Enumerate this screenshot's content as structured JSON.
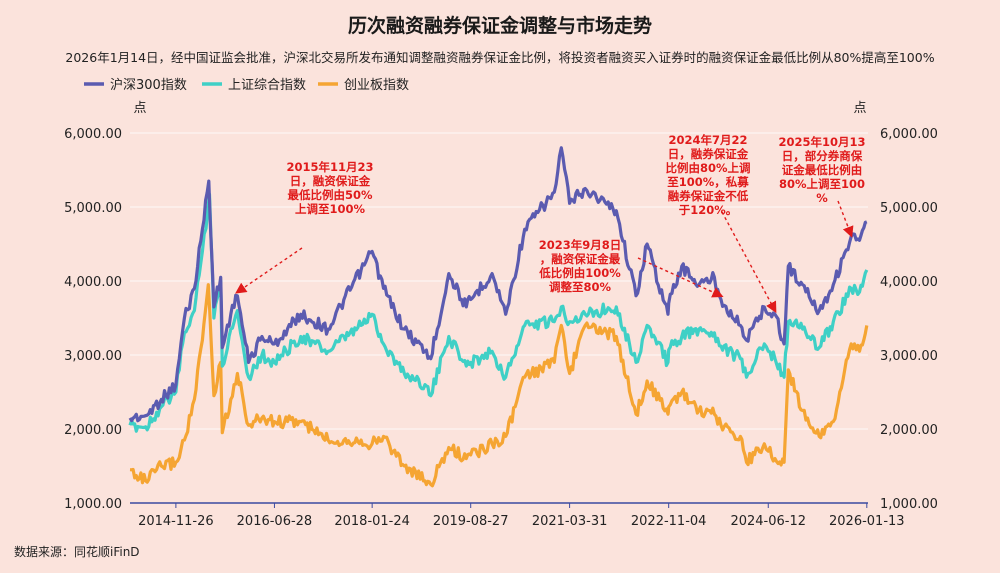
{
  "colors": {
    "background": "#fbe3dc",
    "hs300": "#5b5bb0",
    "sh": "#3fd0c6",
    "cyb": "#f5a533",
    "annotation": "#e01b1b",
    "axis": "#3b4aa0"
  },
  "chart_data": {
    "type": "line",
    "title": "历次融资融券保证金调整与市场走势",
    "subtitle": "2026年1月14日，经中国证监会批准，沪深北交易所发布通知调整融资融券保证金比例，将投资者融资买入证券时的融资保证金最低比例从80%提高至100%",
    "y_unit_left": "点",
    "y_unit_right": "点",
    "ylim": [
      1000,
      6000
    ],
    "xlim": [
      "2014-03-01",
      "2026-01-20"
    ],
    "y_ticks": [
      "1,000.00",
      "2,000.00",
      "3,000.00",
      "4,000.00",
      "5,000.00",
      "6,000.00"
    ],
    "y_tick_values": [
      1000,
      2000,
      3000,
      4000,
      5000,
      6000
    ],
    "x_ticks": [
      "2014-11-26",
      "2016-06-28",
      "2018-01-24",
      "2019-08-27",
      "2021-03-31",
      "2022-11-04",
      "2024-06-12",
      "2026-01-13"
    ],
    "legend": [
      "沪深300指数",
      "上证综合指数",
      "创业板指数"
    ],
    "source": "数据来源：同花顺iFinD",
    "series": [
      {
        "name": "沪深300指数",
        "points": [
          [
            "2014-03-01",
            2150
          ],
          [
            "2014-06-01",
            2180
          ],
          [
            "2014-09-01",
            2400
          ],
          [
            "2014-11-26",
            2600
          ],
          [
            "2015-01-15",
            3500
          ],
          [
            "2015-03-15",
            3900
          ],
          [
            "2015-05-01",
            4700
          ],
          [
            "2015-06-08",
            5350
          ],
          [
            "2015-07-08",
            3650
          ],
          [
            "2015-08-17",
            4050
          ],
          [
            "2015-08-26",
            3100
          ],
          [
            "2015-10-15",
            3550
          ],
          [
            "2015-11-23",
            3800
          ],
          [
            "2016-01-28",
            2900
          ],
          [
            "2016-04-15",
            3250
          ],
          [
            "2016-06-28",
            3150
          ],
          [
            "2016-11-30",
            3550
          ],
          [
            "2017-05-10",
            3350
          ],
          [
            "2017-11-20",
            4150
          ],
          [
            "2018-01-24",
            4400
          ],
          [
            "2018-04-01",
            3900
          ],
          [
            "2018-08-01",
            3350
          ],
          [
            "2018-12-01",
            3050
          ],
          [
            "2019-01-04",
            2950
          ],
          [
            "2019-04-20",
            4100
          ],
          [
            "2019-08-01",
            3650
          ],
          [
            "2019-08-27",
            3750
          ],
          [
            "2019-12-31",
            4100
          ],
          [
            "2020-03-20",
            3550
          ],
          [
            "2020-07-10",
            4700
          ],
          [
            "2020-12-31",
            5200
          ],
          [
            "2021-02-10",
            5800
          ],
          [
            "2021-03-31",
            5050
          ],
          [
            "2021-07-01",
            5250
          ],
          [
            "2021-12-31",
            4950
          ],
          [
            "2022-04-26",
            3800
          ],
          [
            "2022-06-30",
            4500
          ],
          [
            "2022-10-31",
            3550
          ],
          [
            "2022-11-04",
            3700
          ],
          [
            "2023-01-20",
            4200
          ],
          [
            "2023-05-01",
            3950
          ],
          [
            "2023-07-31",
            4050
          ],
          [
            "2023-09-08",
            3750
          ],
          [
            "2023-12-31",
            3400
          ],
          [
            "2024-02-05",
            3200
          ],
          [
            "2024-05-20",
            3650
          ],
          [
            "2024-06-12",
            3550
          ],
          [
            "2024-07-22",
            3550
          ],
          [
            "2024-09-13",
            3150
          ],
          [
            "2024-10-08",
            4200
          ],
          [
            "2024-12-31",
            3950
          ],
          [
            "2025-04-08",
            3600
          ],
          [
            "2025-06-30",
            3950
          ],
          [
            "2025-10-13",
            4600
          ],
          [
            "2025-12-01",
            4550
          ],
          [
            "2026-01-13",
            4800
          ]
        ]
      },
      {
        "name": "上证综合指数",
        "points": [
          [
            "2014-03-01",
            2050
          ],
          [
            "2014-06-01",
            2030
          ],
          [
            "2014-09-01",
            2300
          ],
          [
            "2014-11-26",
            2500
          ],
          [
            "2015-01-15",
            3300
          ],
          [
            "2015-03-15",
            3600
          ],
          [
            "2015-05-01",
            4400
          ],
          [
            "2015-06-12",
            5170
          ],
          [
            "2015-07-08",
            3500
          ],
          [
            "2015-08-17",
            4000
          ],
          [
            "2015-08-26",
            2850
          ],
          [
            "2015-10-15",
            3350
          ],
          [
            "2015-11-23",
            3600
          ],
          [
            "2016-01-28",
            2700
          ],
          [
            "2016-04-15",
            3000
          ],
          [
            "2016-06-28",
            2900
          ],
          [
            "2016-11-30",
            3250
          ],
          [
            "2017-05-10",
            3050
          ],
          [
            "2017-11-20",
            3400
          ],
          [
            "2018-01-24",
            3550
          ],
          [
            "2018-04-01",
            3150
          ],
          [
            "2018-08-01",
            2750
          ],
          [
            "2018-12-01",
            2600
          ],
          [
            "2019-01-04",
            2450
          ],
          [
            "2019-04-20",
            3250
          ],
          [
            "2019-08-01",
            2850
          ],
          [
            "2019-08-27",
            2900
          ],
          [
            "2019-12-31",
            3050
          ],
          [
            "2020-03-20",
            2700
          ],
          [
            "2020-07-10",
            3400
          ],
          [
            "2020-12-31",
            3450
          ],
          [
            "2021-02-10",
            3650
          ],
          [
            "2021-03-31",
            3450
          ],
          [
            "2021-07-01",
            3550
          ],
          [
            "2021-12-31",
            3650
          ],
          [
            "2022-04-26",
            2900
          ],
          [
            "2022-06-30",
            3400
          ],
          [
            "2022-10-31",
            2900
          ],
          [
            "2022-11-04",
            3070
          ],
          [
            "2023-01-20",
            3250
          ],
          [
            "2023-05-01",
            3350
          ],
          [
            "2023-07-31",
            3300
          ],
          [
            "2023-09-08",
            3120
          ],
          [
            "2023-12-31",
            2950
          ],
          [
            "2024-02-05",
            2700
          ],
          [
            "2024-05-20",
            3150
          ],
          [
            "2024-06-12",
            3050
          ],
          [
            "2024-07-22",
            2950
          ],
          [
            "2024-09-13",
            2700
          ],
          [
            "2024-10-08",
            3450
          ],
          [
            "2024-12-31",
            3350
          ],
          [
            "2025-04-08",
            3100
          ],
          [
            "2025-06-30",
            3450
          ],
          [
            "2025-10-13",
            3900
          ],
          [
            "2025-12-01",
            3850
          ],
          [
            "2026-01-13",
            4150
          ]
        ]
      },
      {
        "name": "创业板指数",
        "points": [
          [
            "2014-03-01",
            1450
          ],
          [
            "2014-06-01",
            1300
          ],
          [
            "2014-09-01",
            1500
          ],
          [
            "2014-11-26",
            1550
          ],
          [
            "2015-01-15",
            1850
          ],
          [
            "2015-03-15",
            2400
          ],
          [
            "2015-05-01",
            3200
          ],
          [
            "2015-06-05",
            3950
          ],
          [
            "2015-07-08",
            2450
          ],
          [
            "2015-08-17",
            2900
          ],
          [
            "2015-08-26",
            1950
          ],
          [
            "2015-10-15",
            2400
          ],
          [
            "2015-11-23",
            2750
          ],
          [
            "2016-01-28",
            2050
          ],
          [
            "2016-04-15",
            2150
          ],
          [
            "2016-06-28",
            2100
          ],
          [
            "2016-11-30",
            2100
          ],
          [
            "2017-05-10",
            1850
          ],
          [
            "2017-11-20",
            1850
          ],
          [
            "2018-01-24",
            1800
          ],
          [
            "2018-04-01",
            1900
          ],
          [
            "2018-08-01",
            1500
          ],
          [
            "2018-12-01",
            1300
          ],
          [
            "2019-01-04",
            1250
          ],
          [
            "2019-04-20",
            1750
          ],
          [
            "2019-08-01",
            1600
          ],
          [
            "2019-08-27",
            1650
          ],
          [
            "2019-12-31",
            1800
          ],
          [
            "2020-03-20",
            1900
          ],
          [
            "2020-07-10",
            2700
          ],
          [
            "2020-12-31",
            2900
          ],
          [
            "2021-02-10",
            3400
          ],
          [
            "2021-03-31",
            2750
          ],
          [
            "2021-07-01",
            3400
          ],
          [
            "2021-12-31",
            3250
          ],
          [
            "2022-04-26",
            2200
          ],
          [
            "2022-06-30",
            2650
          ],
          [
            "2022-10-31",
            2200
          ],
          [
            "2022-11-04",
            2300
          ],
          [
            "2023-01-20",
            2500
          ],
          [
            "2023-05-01",
            2250
          ],
          [
            "2023-07-31",
            2200
          ],
          [
            "2023-09-08",
            2050
          ],
          [
            "2023-12-31",
            1900
          ],
          [
            "2024-02-05",
            1550
          ],
          [
            "2024-05-20",
            1800
          ],
          [
            "2024-06-12",
            1700
          ],
          [
            "2024-07-22",
            1600
          ],
          [
            "2024-09-13",
            1550
          ],
          [
            "2024-10-08",
            2800
          ],
          [
            "2024-12-31",
            2250
          ],
          [
            "2025-04-08",
            1900
          ],
          [
            "2025-06-30",
            2100
          ],
          [
            "2025-10-13",
            3150
          ],
          [
            "2025-12-01",
            3050
          ],
          [
            "2026-01-13",
            3400
          ]
        ]
      }
    ],
    "annotations": [
      {
        "lines": [
          "2015年11月23",
          "日，融资保证金",
          "最低比例由50%",
          "上调至100%"
        ],
        "target": [
          "2015-11-23",
          3850
        ]
      },
      {
        "lines": [
          "2023年9月8日",
          "，融资保证金最",
          "低比例由100%",
          "调整至80%"
        ],
        "target": [
          "2023-09-08",
          3800
        ]
      },
      {
        "lines": [
          "2024年7月22",
          "日，融券保证金",
          "比例由80%上调",
          "至100%，私募",
          "融券保证金不低",
          "于120%。"
        ],
        "target": [
          "2024-07-22",
          3600
        ]
      },
      {
        "lines": [
          "2025年10月13",
          "日，部分券商保",
          "证金最低比例由",
          "80%上调至100",
          "%"
        ],
        "target": [
          "2025-10-13",
          4620
        ]
      }
    ]
  }
}
